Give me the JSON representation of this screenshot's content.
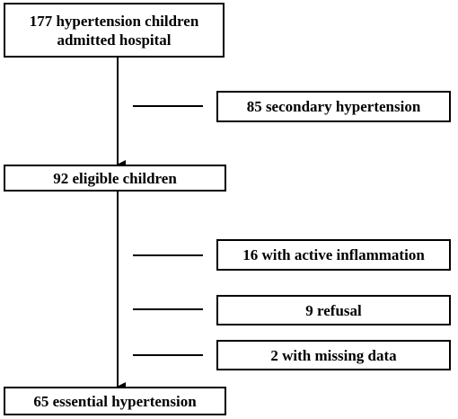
{
  "flowchart": {
    "start": {
      "line1": "177 hypertension children",
      "line2": "admitted hospital"
    },
    "excluded_secondary": "85 secondary hypertension",
    "eligible": "92 eligible children",
    "excluded_inflammation": "16 with active inflammation",
    "excluded_refusal": "9 refusal",
    "excluded_missing": "2 with missing data",
    "final": "65 essential hypertension"
  }
}
